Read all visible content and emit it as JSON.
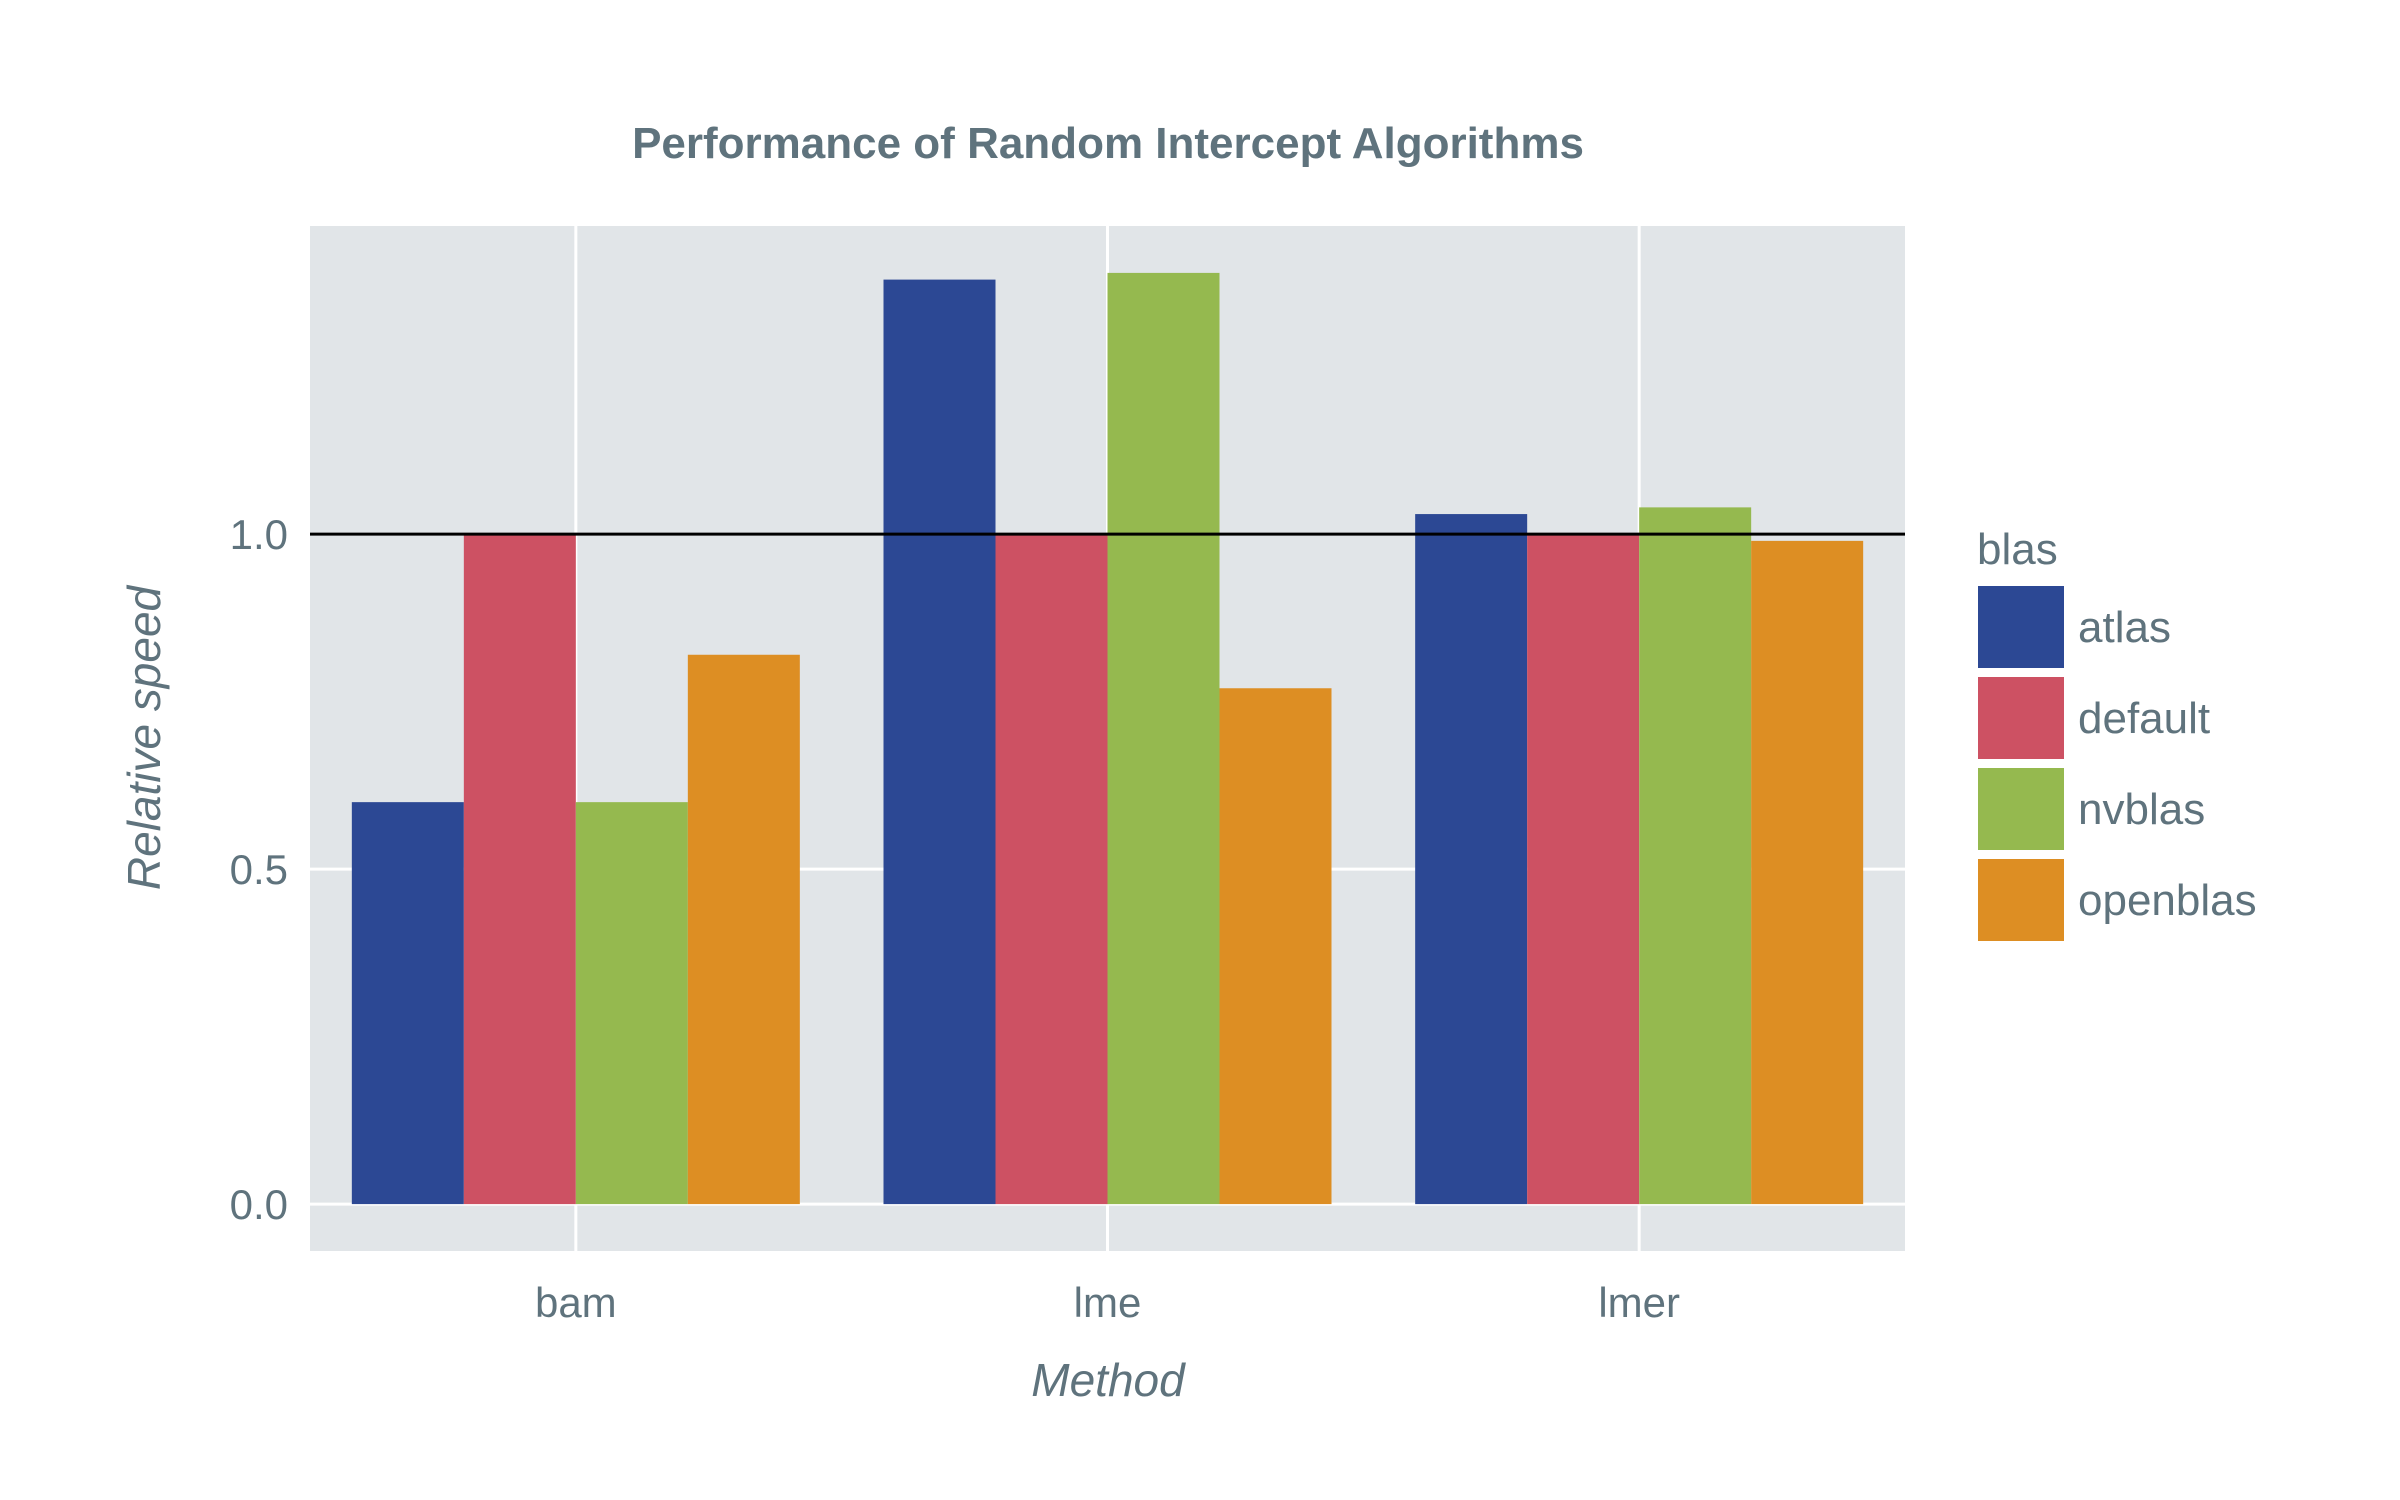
{
  "chart_data": {
    "type": "bar",
    "title": "Performance of Random Intercept Algorithms",
    "xlabel": "Method",
    "ylabel": "Relative speed",
    "categories": [
      "bam",
      "lme",
      "lmer"
    ],
    "series": [
      {
        "name": "atlas",
        "color": "#2c4894",
        "values": [
          0.6,
          1.38,
          1.03
        ]
      },
      {
        "name": "default",
        "color": "#cd5163",
        "values": [
          1.0,
          1.0,
          1.0
        ]
      },
      {
        "name": "nvblas",
        "color": "#95b94f",
        "values": [
          0.6,
          1.39,
          1.04
        ]
      },
      {
        "name": "openblas",
        "color": "#dd8e23",
        "values": [
          0.82,
          0.77,
          0.99
        ]
      }
    ],
    "ylim": [
      -0.07,
      1.46
    ],
    "yticks": [
      0.0,
      0.5,
      1.0
    ],
    "ytick_labels": [
      "0.0",
      "0.5",
      "1.0"
    ],
    "reference_line": 1.0,
    "legend": {
      "title": "blas",
      "position": "right"
    },
    "grid": true,
    "plot_background": "#e1e5e8"
  }
}
